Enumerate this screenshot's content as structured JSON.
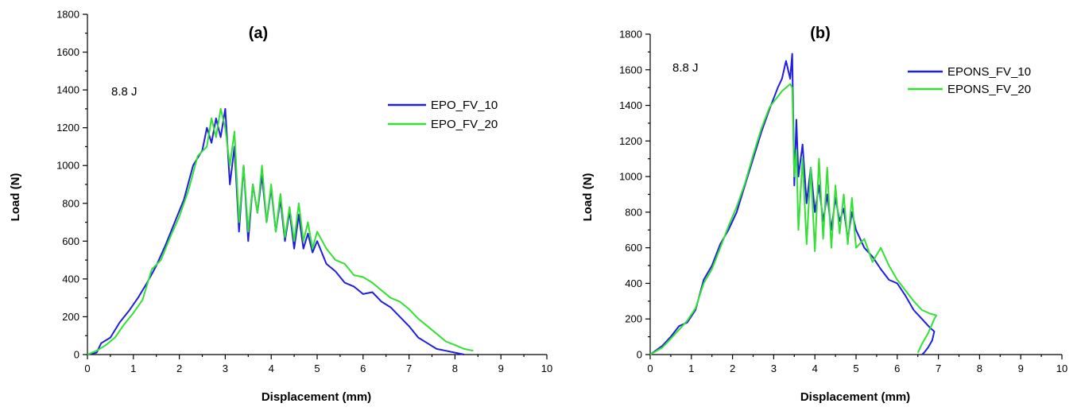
{
  "chart_data": [
    {
      "type": "line",
      "panel_label": "(a)",
      "annotation": "8.8 J",
      "xlabel": "Displacement (mm)",
      "ylabel": "Load (N)",
      "xlim": [
        0,
        10
      ],
      "ylim": [
        0,
        1800
      ],
      "xticks": [
        0,
        1,
        2,
        3,
        4,
        5,
        6,
        7,
        8,
        9,
        10
      ],
      "yticks": [
        0,
        200,
        400,
        600,
        800,
        1000,
        1200,
        1400,
        1600,
        1800
      ],
      "grid": false,
      "legend_position": "upper-right",
      "series": [
        {
          "name": "EPO_FV_10",
          "color": "#1f1fe0",
          "x": [
            0.0,
            0.2,
            0.3,
            0.5,
            0.7,
            0.9,
            1.1,
            1.3,
            1.5,
            1.7,
            1.9,
            2.1,
            2.3,
            2.5,
            2.6,
            2.7,
            2.8,
            2.9,
            3.0,
            3.1,
            3.2,
            3.3,
            3.4,
            3.5,
            3.6,
            3.7,
            3.8,
            3.9,
            4.0,
            4.1,
            4.2,
            4.3,
            4.4,
            4.5,
            4.6,
            4.7,
            4.8,
            4.9,
            5.0,
            5.2,
            5.4,
            5.6,
            5.8,
            6.0,
            6.2,
            6.4,
            6.6,
            6.8,
            7.0,
            7.2,
            7.4,
            7.6,
            7.8,
            8.0,
            8.2
          ],
          "y": [
            0,
            10,
            60,
            90,
            170,
            230,
            300,
            380,
            470,
            580,
            700,
            820,
            1000,
            1080,
            1200,
            1120,
            1250,
            1150,
            1300,
            900,
            1100,
            650,
            1000,
            600,
            900,
            750,
            950,
            700,
            880,
            650,
            820,
            600,
            760,
            560,
            740,
            560,
            640,
            540,
            600,
            480,
            440,
            380,
            360,
            320,
            330,
            280,
            250,
            200,
            150,
            90,
            60,
            30,
            20,
            10,
            0
          ]
        },
        {
          "name": "EPO_FV_20",
          "color": "#33e033",
          "x": [
            0.0,
            0.2,
            0.4,
            0.6,
            0.8,
            1.0,
            1.2,
            1.4,
            1.6,
            1.8,
            2.0,
            2.2,
            2.4,
            2.6,
            2.7,
            2.8,
            2.9,
            3.0,
            3.1,
            3.2,
            3.3,
            3.4,
            3.5,
            3.6,
            3.7,
            3.8,
            3.9,
            4.0,
            4.1,
            4.2,
            4.3,
            4.4,
            4.5,
            4.6,
            4.7,
            4.8,
            4.9,
            5.0,
            5.2,
            5.4,
            5.6,
            5.8,
            6.0,
            6.2,
            6.4,
            6.6,
            6.8,
            7.0,
            7.2,
            7.4,
            7.6,
            7.8,
            8.0,
            8.2,
            8.4
          ],
          "y": [
            0,
            20,
            50,
            90,
            160,
            220,
            290,
            450,
            500,
            620,
            730,
            870,
            1050,
            1100,
            1250,
            1150,
            1300,
            1200,
            1000,
            1180,
            700,
            1000,
            650,
            900,
            750,
            1000,
            700,
            900,
            650,
            850,
            620,
            780,
            600,
            800,
            600,
            700,
            560,
            650,
            560,
            500,
            480,
            420,
            410,
            380,
            340,
            300,
            280,
            240,
            190,
            150,
            110,
            70,
            50,
            30,
            20
          ]
        }
      ]
    },
    {
      "type": "line",
      "panel_label": "(b)",
      "annotation": "8.8 J",
      "xlabel": "Displacement (mm)",
      "ylabel": "Load (N)",
      "xlim": [
        0,
        10
      ],
      "ylim": [
        0,
        1800
      ],
      "xticks": [
        0,
        1,
        2,
        3,
        4,
        5,
        6,
        7,
        8,
        9,
        10
      ],
      "yticks": [
        0,
        200,
        400,
        600,
        800,
        1000,
        1200,
        1400,
        1600,
        1800
      ],
      "grid": false,
      "legend_position": "upper-right",
      "series": [
        {
          "name": "EPONS_FV_10",
          "color": "#1f1fe0",
          "x": [
            0.0,
            0.3,
            0.5,
            0.7,
            0.9,
            1.1,
            1.3,
            1.5,
            1.7,
            1.9,
            2.1,
            2.3,
            2.5,
            2.7,
            2.9,
            3.1,
            3.2,
            3.3,
            3.4,
            3.45,
            3.5,
            3.55,
            3.6,
            3.7,
            3.8,
            3.9,
            4.0,
            4.1,
            4.2,
            4.3,
            4.4,
            4.5,
            4.6,
            4.7,
            4.8,
            4.9,
            5.0,
            5.2,
            5.4,
            5.6,
            5.8,
            6.0,
            6.2,
            6.4,
            6.6,
            6.8,
            6.9,
            6.85,
            6.75,
            6.65,
            6.6
          ],
          "y": [
            0,
            50,
            100,
            160,
            180,
            250,
            420,
            500,
            620,
            700,
            800,
            950,
            1100,
            1250,
            1380,
            1500,
            1550,
            1650,
            1550,
            1690,
            950,
            1320,
            1000,
            1180,
            850,
            1050,
            800,
            950,
            750,
            900,
            700,
            880,
            750,
            820,
            650,
            800,
            700,
            600,
            550,
            480,
            420,
            400,
            330,
            250,
            200,
            150,
            130,
            80,
            40,
            10,
            0
          ]
        },
        {
          "name": "EPONS_FV_20",
          "color": "#33e033",
          "x": [
            0.0,
            0.3,
            0.5,
            0.7,
            0.9,
            1.1,
            1.3,
            1.5,
            1.7,
            1.9,
            2.1,
            2.3,
            2.5,
            2.7,
            2.9,
            3.1,
            3.2,
            3.3,
            3.4,
            3.45,
            3.5,
            3.55,
            3.6,
            3.7,
            3.8,
            3.9,
            4.0,
            4.1,
            4.2,
            4.3,
            4.4,
            4.5,
            4.6,
            4.7,
            4.8,
            4.9,
            5.0,
            5.2,
            5.4,
            5.6,
            5.8,
            6.0,
            6.2,
            6.4,
            6.6,
            6.8,
            6.95,
            6.9,
            6.75,
            6.6,
            6.5
          ],
          "y": [
            0,
            40,
            90,
            140,
            190,
            260,
            400,
            480,
            600,
            720,
            830,
            960,
            1120,
            1270,
            1390,
            1450,
            1480,
            1500,
            1520,
            1500,
            1000,
            1150,
            700,
            1100,
            620,
            1050,
            580,
            1100,
            650,
            1050,
            600,
            950,
            680,
            900,
            620,
            880,
            600,
            650,
            520,
            600,
            500,
            420,
            360,
            300,
            250,
            230,
            220,
            200,
            120,
            60,
            10
          ]
        }
      ]
    }
  ]
}
